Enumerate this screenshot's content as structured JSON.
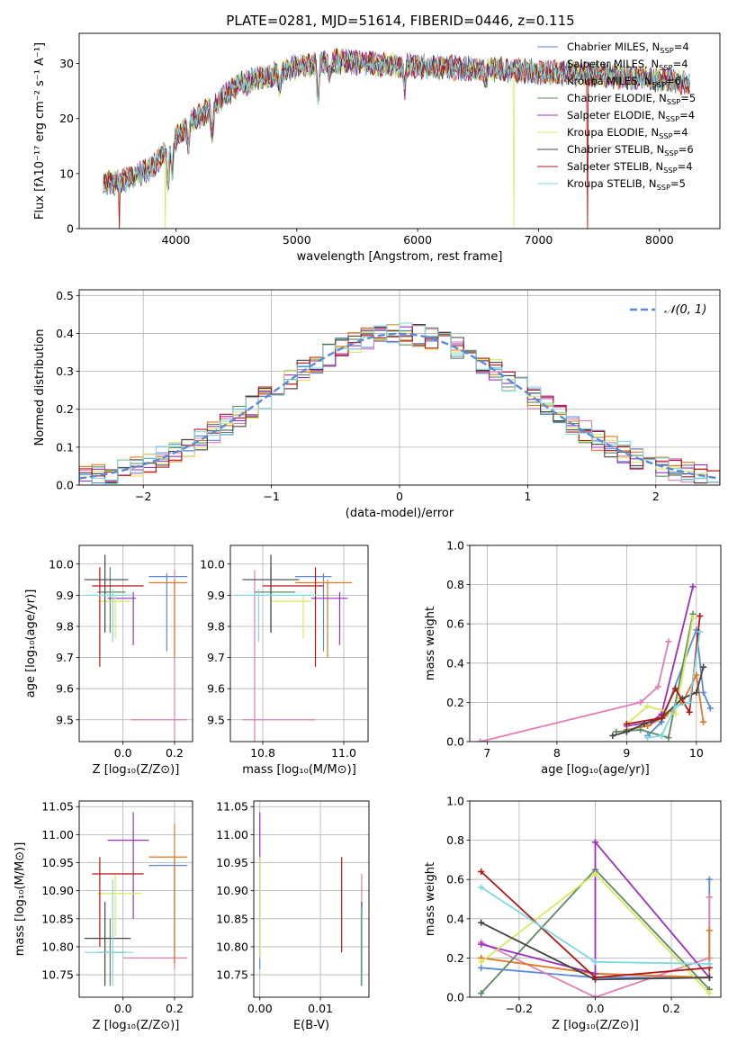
{
  "figure_title": "PLATE=0281, MJD=51614, FIBERID=0446, z=0.115",
  "colors": {
    "Chabrier MILES": "#5b8ad6",
    "Salpeter MILES": "#e07fb5",
    "Kroupa MILES": "#e07820",
    "Chabrier ELODIE": "#5e8a62",
    "Salpeter ELODIE": "#9b30c0",
    "Kroupa ELODIE": "#d8e860",
    "Chabrier STELIB": "#454545",
    "Salpeter STELIB": "#b01818",
    "Kroupa STELIB": "#80d8e0",
    "gaussian": "#5b8ad6",
    "grid": "#b0b0b0"
  },
  "chart_data": [
    {
      "id": "spectrum",
      "type": "line",
      "xlabel": "wavelength [Angstrom, rest frame]",
      "ylabel": "Flux [fλ10⁻¹⁷ erg cm⁻² s⁻¹ A⁻¹]",
      "xlim": [
        3200,
        8500
      ],
      "ylim": [
        0,
        35.5
      ],
      "xticks": [
        4000,
        5000,
        6000,
        7000,
        8000
      ],
      "yticks": [
        0,
        10,
        20,
        30
      ],
      "grid": false,
      "legend": "top-right",
      "x_range": [
        3400,
        8250
      ],
      "continuum": {
        "x": [
          3400,
          3600,
          3800,
          3950,
          4100,
          4300,
          4500,
          4800,
          5000,
          5300,
          5600,
          6000,
          6500,
          7000,
          7500,
          8000,
          8250
        ],
        "y": [
          8,
          9,
          11,
          15,
          19,
          22,
          26,
          28,
          29.5,
          30.5,
          30,
          29.5,
          29,
          28.5,
          28,
          27,
          26.5
        ]
      },
      "features": [
        {
          "x": 3934,
          "depth": 7
        },
        {
          "x": 3969,
          "depth": 6
        },
        {
          "x": 4102,
          "depth": 4
        },
        {
          "x": 4300,
          "depth": 5
        },
        {
          "x": 4861,
          "depth": 3
        },
        {
          "x": 5175,
          "depth": 6
        },
        {
          "x": 5270,
          "depth": 2.5
        },
        {
          "x": 5893,
          "depth": 4
        },
        {
          "x": 6563,
          "depth": 2
        }
      ],
      "series": [
        {
          "name": "Chabrier MILES, N$_{SSP}$=4",
          "color_key": "Chabrier MILES",
          "drops": []
        },
        {
          "name": "Salpeter MILES, N$_{SSP}$=4",
          "color_key": "Salpeter MILES",
          "drops": []
        },
        {
          "name": "Kroupa MILES, N$_{SSP}$=6",
          "color_key": "Kroupa MILES",
          "drops": [
            3530,
            7405
          ]
        },
        {
          "name": "Chabrier ELODIE, N$_{SSP}$=5",
          "color_key": "Chabrier ELODIE",
          "drops": []
        },
        {
          "name": "Salpeter ELODIE, N$_{SSP}$=4",
          "color_key": "Salpeter ELODIE",
          "drops": []
        },
        {
          "name": "Kroupa ELODIE, N$_{SSP}$=4",
          "color_key": "Kroupa ELODIE",
          "drops": [
            3912,
            6795
          ]
        },
        {
          "name": "Chabrier STELIB, N$_{SSP}$=6",
          "color_key": "Chabrier STELIB",
          "drops": []
        },
        {
          "name": "Salpeter STELIB, N$_{SSP}$=4",
          "color_key": "Salpeter STELIB",
          "drops": [
            3530,
            7405
          ]
        },
        {
          "name": "Kroupa STELIB, N$_{SSP}$=5",
          "color_key": "Kroupa STELIB",
          "drops": []
        }
      ]
    },
    {
      "id": "residuals",
      "type": "histogram",
      "xlabel": "(data-model)/error",
      "ylabel": "Normed distribution",
      "xlim": [
        -2.5,
        2.5
      ],
      "ylim": [
        0,
        0.515
      ],
      "xticks": [
        -2,
        -1,
        0,
        1,
        2
      ],
      "yticks": [
        0.0,
        0.1,
        0.2,
        0.3,
        0.4,
        0.5
      ],
      "grid": true,
      "legend": "top-right",
      "gaussian_label": "𝒩(0, 1)",
      "bin_width": 0.1,
      "bin_start": -2.6,
      "series_color_keys": [
        "Chabrier MILES",
        "Salpeter MILES",
        "Kroupa MILES",
        "Chabrier ELODIE",
        "Salpeter ELODIE",
        "Kroupa ELODIE",
        "Chabrier STELIB",
        "Salpeter STELIB",
        "Kroupa STELIB"
      ]
    },
    {
      "id": "age_vs_Z",
      "type": "errorbar",
      "xlabel": "Z [log₁₀(Z/Z⊙)]",
      "ylabel": "age  [log₁₀(age/yr)]",
      "xlim": [
        -0.17,
        0.27
      ],
      "ylim": [
        9.43,
        10.06
      ],
      "xticks": [
        0.0,
        0.2
      ],
      "yticks": [
        9.5,
        9.6,
        9.7,
        9.8,
        9.9,
        10.0
      ],
      "grid": true,
      "points": [
        {
          "k": "Chabrier MILES",
          "x": 0.17,
          "y": 9.96,
          "xlo": 0.1,
          "xhi": 0.25,
          "ylo": 9.72,
          "yhi": 9.97
        },
        {
          "k": "Salpeter MILES",
          "x": 0.2,
          "y": 9.5,
          "xlo": 0.03,
          "xhi": 0.25,
          "ylo": 9.43,
          "yhi": 9.98
        },
        {
          "k": "Kroupa MILES",
          "x": 0.2,
          "y": 9.94,
          "xlo": 0.1,
          "xhi": 0.25,
          "ylo": 9.7,
          "yhi": 9.95
        },
        {
          "k": "Chabrier ELODIE",
          "x": -0.05,
          "y": 9.91,
          "xlo": -0.1,
          "xhi": 0.01,
          "ylo": 9.78,
          "yhi": 9.99
        },
        {
          "k": "Salpeter ELODIE",
          "x": 0.04,
          "y": 9.89,
          "xlo": -0.06,
          "xhi": 0.05,
          "ylo": 9.74,
          "yhi": 9.91
        },
        {
          "k": "Kroupa ELODIE",
          "x": -0.03,
          "y": 9.88,
          "xlo": -0.1,
          "xhi": 0.03,
          "ylo": 9.76,
          "yhi": 9.9
        },
        {
          "k": "Chabrier STELIB",
          "x": -0.07,
          "y": 9.95,
          "xlo": -0.15,
          "xhi": 0.02,
          "ylo": 9.78,
          "yhi": 10.03
        },
        {
          "k": "Salpeter STELIB",
          "x": -0.09,
          "y": 9.93,
          "xlo": -0.12,
          "xhi": 0.08,
          "ylo": 9.67,
          "yhi": 9.99
        },
        {
          "k": "Kroupa STELIB",
          "x": -0.04,
          "y": 9.9,
          "xlo": -0.15,
          "xhi": 0.04,
          "ylo": 9.75,
          "yhi": 9.92
        }
      ]
    },
    {
      "id": "age_vs_mass",
      "type": "errorbar",
      "xlabel": "mass [log₁₀(M/M⊙)]",
      "ylabel": "",
      "xlim": [
        10.72,
        11.06
      ],
      "ylim": [
        9.43,
        10.06
      ],
      "xticks": [
        10.8,
        11.0
      ],
      "yticks": [
        9.5,
        9.6,
        9.7,
        9.8,
        9.9,
        10.0
      ],
      "grid": true,
      "points": [
        {
          "k": "Chabrier MILES",
          "x": 10.95,
          "y": 9.96,
          "xlo": 10.88,
          "xhi": 10.97,
          "ylo": 9.72,
          "yhi": 9.97
        },
        {
          "k": "Salpeter MILES",
          "x": 10.78,
          "y": 9.5,
          "xlo": 10.75,
          "xhi": 10.93,
          "ylo": 9.43,
          "yhi": 9.98
        },
        {
          "k": "Kroupa MILES",
          "x": 10.96,
          "y": 9.94,
          "xlo": 10.88,
          "xhi": 11.02,
          "ylo": 9.7,
          "yhi": 9.95
        },
        {
          "k": "Chabrier ELODIE",
          "x": 10.82,
          "y": 9.91,
          "xlo": 10.78,
          "xhi": 10.88,
          "ylo": 9.78,
          "yhi": 9.99
        },
        {
          "k": "Salpeter ELODIE",
          "x": 10.99,
          "y": 9.89,
          "xlo": 10.92,
          "xhi": 11.01,
          "ylo": 9.74,
          "yhi": 9.91
        },
        {
          "k": "Kroupa ELODIE",
          "x": 10.9,
          "y": 9.88,
          "xlo": 10.82,
          "xhi": 10.92,
          "ylo": 9.76,
          "yhi": 9.9
        },
        {
          "k": "Chabrier STELIB",
          "x": 10.82,
          "y": 9.95,
          "xlo": 10.75,
          "xhi": 10.89,
          "ylo": 9.78,
          "yhi": 10.03
        },
        {
          "k": "Salpeter STELIB",
          "x": 10.93,
          "y": 9.93,
          "xlo": 10.8,
          "xhi": 10.95,
          "ylo": 9.67,
          "yhi": 9.99
        },
        {
          "k": "Kroupa STELIB",
          "x": 10.79,
          "y": 9.9,
          "xlo": 10.73,
          "xhi": 10.94,
          "ylo": 9.75,
          "yhi": 9.92
        }
      ]
    },
    {
      "id": "mass_weight_vs_age",
      "type": "line",
      "xlabel": "age  [log₁₀(age/yr)]",
      "ylabel": "mass weight",
      "xlim": [
        6.75,
        10.35
      ],
      "ylim": [
        0,
        1.0
      ],
      "xticks": [
        7,
        8,
        9,
        10
      ],
      "yticks": [
        0.0,
        0.2,
        0.4,
        0.6,
        0.8,
        1.0
      ],
      "grid": true,
      "series": [
        {
          "k": "Chabrier MILES",
          "x": [
            9.3,
            9.5,
            10.0,
            10.1,
            10.2
          ],
          "y": [
            0.03,
            0.1,
            0.57,
            0.25,
            0.17
          ]
        },
        {
          "k": "Salpeter MILES",
          "x": [
            6.9,
            9.2,
            9.45,
            9.6
          ],
          "y": [
            0.0,
            0.2,
            0.28,
            0.51
          ]
        },
        {
          "k": "Kroupa MILES",
          "x": [
            9.0,
            9.3,
            9.55,
            9.8,
            10.0,
            10.1
          ],
          "y": [
            0.06,
            0.08,
            0.13,
            0.2,
            0.34,
            0.1
          ]
        },
        {
          "k": "Chabrier ELODIE",
          "x": [
            8.85,
            9.2,
            9.6,
            9.95
          ],
          "y": [
            0.05,
            0.06,
            0.02,
            0.65
          ]
        },
        {
          "k": "Salpeter ELODIE",
          "x": [
            9.0,
            9.35,
            9.5,
            9.95
          ],
          "y": [
            0.08,
            0.1,
            0.14,
            0.79
          ]
        },
        {
          "k": "Kroupa ELODIE",
          "x": [
            9.0,
            9.3,
            9.7,
            9.95
          ],
          "y": [
            0.09,
            0.18,
            0.14,
            0.63
          ]
        },
        {
          "k": "Chabrier STELIB",
          "x": [
            8.8,
            9.0,
            9.25,
            9.5,
            9.8,
            10.0,
            10.1
          ],
          "y": [
            0.03,
            0.05,
            0.09,
            0.12,
            0.22,
            0.25,
            0.38
          ]
        },
        {
          "k": "Salpeter STELIB",
          "x": [
            9.0,
            9.5,
            9.7,
            9.9,
            10.05
          ],
          "y": [
            0.09,
            0.12,
            0.27,
            0.15,
            0.64
          ]
        },
        {
          "k": "Kroupa STELIB",
          "x": [
            9.3,
            9.5,
            9.7,
            9.9,
            10.05
          ],
          "y": [
            0.02,
            0.03,
            0.18,
            0.2,
            0.56
          ]
        }
      ]
    },
    {
      "id": "mass_vs_Z",
      "type": "errorbar",
      "xlabel": "Z [log₁₀(Z/Z⊙)]",
      "ylabel": "mass [log₁₀(M/M⊙)]",
      "xlim": [
        -0.17,
        0.27
      ],
      "ylim": [
        10.71,
        11.06
      ],
      "xticks": [
        0.0,
        0.2
      ],
      "yticks": [
        10.75,
        10.8,
        10.85,
        10.9,
        10.95,
        11.0,
        11.05
      ],
      "grid": true,
      "points": [
        {
          "k": "Chabrier MILES",
          "x": 0.2,
          "y": 10.945,
          "xlo": 0.1,
          "xhi": 0.25,
          "ylo": 10.77,
          "yhi": 10.96
        },
        {
          "k": "Salpeter MILES",
          "x": 0.2,
          "y": 10.78,
          "xlo": 0.0,
          "xhi": 0.25,
          "ylo": 10.76,
          "yhi": 10.95
        },
        {
          "k": "Kroupa MILES",
          "x": 0.2,
          "y": 10.96,
          "xlo": 0.1,
          "xhi": 0.25,
          "ylo": 10.77,
          "yhi": 11.02
        },
        {
          "k": "Chabrier ELODIE",
          "x": -0.05,
          "y": 10.79,
          "xlo": -0.1,
          "xhi": 0.01,
          "ylo": 10.73,
          "yhi": 10.85
        },
        {
          "k": "Salpeter ELODIE",
          "x": 0.04,
          "y": 10.99,
          "xlo": -0.06,
          "xhi": 0.1,
          "ylo": 10.85,
          "yhi": 11.04
        },
        {
          "k": "Kroupa ELODIE",
          "x": -0.03,
          "y": 10.895,
          "xlo": -0.1,
          "xhi": 0.07,
          "ylo": 10.82,
          "yhi": 10.93
        },
        {
          "k": "Chabrier STELIB",
          "x": -0.07,
          "y": 10.815,
          "xlo": -0.15,
          "xhi": 0.03,
          "ylo": 10.73,
          "yhi": 10.88
        },
        {
          "k": "Salpeter STELIB",
          "x": -0.09,
          "y": 10.93,
          "xlo": -0.12,
          "xhi": 0.08,
          "ylo": 10.8,
          "yhi": 10.96
        },
        {
          "k": "Kroupa STELIB",
          "x": -0.04,
          "y": 10.79,
          "xlo": -0.15,
          "xhi": 0.04,
          "ylo": 10.73,
          "yhi": 10.92
        }
      ]
    },
    {
      "id": "mass_vs_EBV",
      "type": "errorbar",
      "xlabel": "E(B-V)",
      "ylabel": "",
      "xlim": [
        -0.001,
        0.018
      ],
      "ylim": [
        10.71,
        11.06
      ],
      "xticks": [
        0.0,
        0.01
      ],
      "yticks": [
        10.75,
        10.8,
        10.85,
        10.9,
        10.95,
        11.0,
        11.05
      ],
      "grid": true,
      "points": [
        {
          "k": "Chabrier MILES",
          "x": 0.0,
          "y": 10.85,
          "ylo": 10.76,
          "yhi": 10.95
        },
        {
          "k": "Salpeter ELODIE",
          "x": 0.0,
          "y": 11.0,
          "ylo": 10.95,
          "yhi": 11.04
        },
        {
          "k": "Kroupa ELODIE",
          "x": 0.0,
          "y": 10.85,
          "ylo": 10.78,
          "yhi": 10.96
        },
        {
          "k": "Salpeter STELIB",
          "x": 0.0135,
          "y": 10.87,
          "ylo": 10.79,
          "yhi": 10.96
        },
        {
          "k": "Salpeter MILES",
          "x": 0.0168,
          "y": 10.85,
          "ylo": 10.75,
          "yhi": 10.93
        },
        {
          "k": "Chabrier STELIB",
          "x": 0.0168,
          "y": 10.83,
          "ylo": 10.76,
          "yhi": 10.88
        },
        {
          "k": "Kroupa STELIB",
          "x": 0.0167,
          "y": 10.8,
          "ylo": 10.73,
          "yhi": 10.87
        },
        {
          "k": "Chabrier ELODIE",
          "x": 0.0168,
          "y": 10.8,
          "ylo": 10.73,
          "yhi": 10.86
        }
      ]
    },
    {
      "id": "mass_weight_vs_Z",
      "type": "line",
      "xlabel": "Z [log₁₀(Z/Z⊙)]",
      "ylabel": "mass weight",
      "xlim": [
        -0.33,
        0.33
      ],
      "ylim": [
        0,
        1.0
      ],
      "xticks": [
        -0.2,
        0.0,
        0.2
      ],
      "yticks": [
        0.0,
        0.2,
        0.4,
        0.6,
        0.8,
        1.0
      ],
      "grid": true,
      "series": [
        {
          "k": "Chabrier MILES",
          "x": [
            -0.3,
            0.0,
            0.3,
            0.3
          ],
          "y": [
            0.15,
            0.1,
            0.1,
            0.6
          ]
        },
        {
          "k": "Salpeter MILES",
          "x": [
            -0.3,
            0.0,
            0.3,
            0.3
          ],
          "y": [
            0.28,
            0.0,
            0.2,
            0.51
          ]
        },
        {
          "k": "Kroupa MILES",
          "x": [
            -0.3,
            0.0,
            0.3,
            0.3
          ],
          "y": [
            0.2,
            0.12,
            0.1,
            0.34
          ]
        },
        {
          "k": "Chabrier ELODIE",
          "x": [
            -0.3,
            0.0,
            0.3
          ],
          "y": [
            0.02,
            0.65,
            0.04
          ]
        },
        {
          "k": "Salpeter ELODIE",
          "x": [
            -0.3,
            0.0,
            0.0,
            0.3
          ],
          "y": [
            0.27,
            0.12,
            0.79,
            0.1
          ]
        },
        {
          "k": "Kroupa ELODIE",
          "x": [
            -0.3,
            0.0,
            0.3
          ],
          "y": [
            0.18,
            0.63,
            0.02
          ]
        },
        {
          "k": "Chabrier STELIB",
          "x": [
            -0.3,
            0.0,
            0.3
          ],
          "y": [
            0.38,
            0.09,
            0.1
          ]
        },
        {
          "k": "Salpeter STELIB",
          "x": [
            -0.3,
            0.0,
            0.3
          ],
          "y": [
            0.64,
            0.1,
            0.15
          ]
        },
        {
          "k": "Kroupa STELIB",
          "x": [
            -0.3,
            0.0,
            0.3
          ],
          "y": [
            0.56,
            0.18,
            0.17
          ]
        }
      ]
    }
  ]
}
